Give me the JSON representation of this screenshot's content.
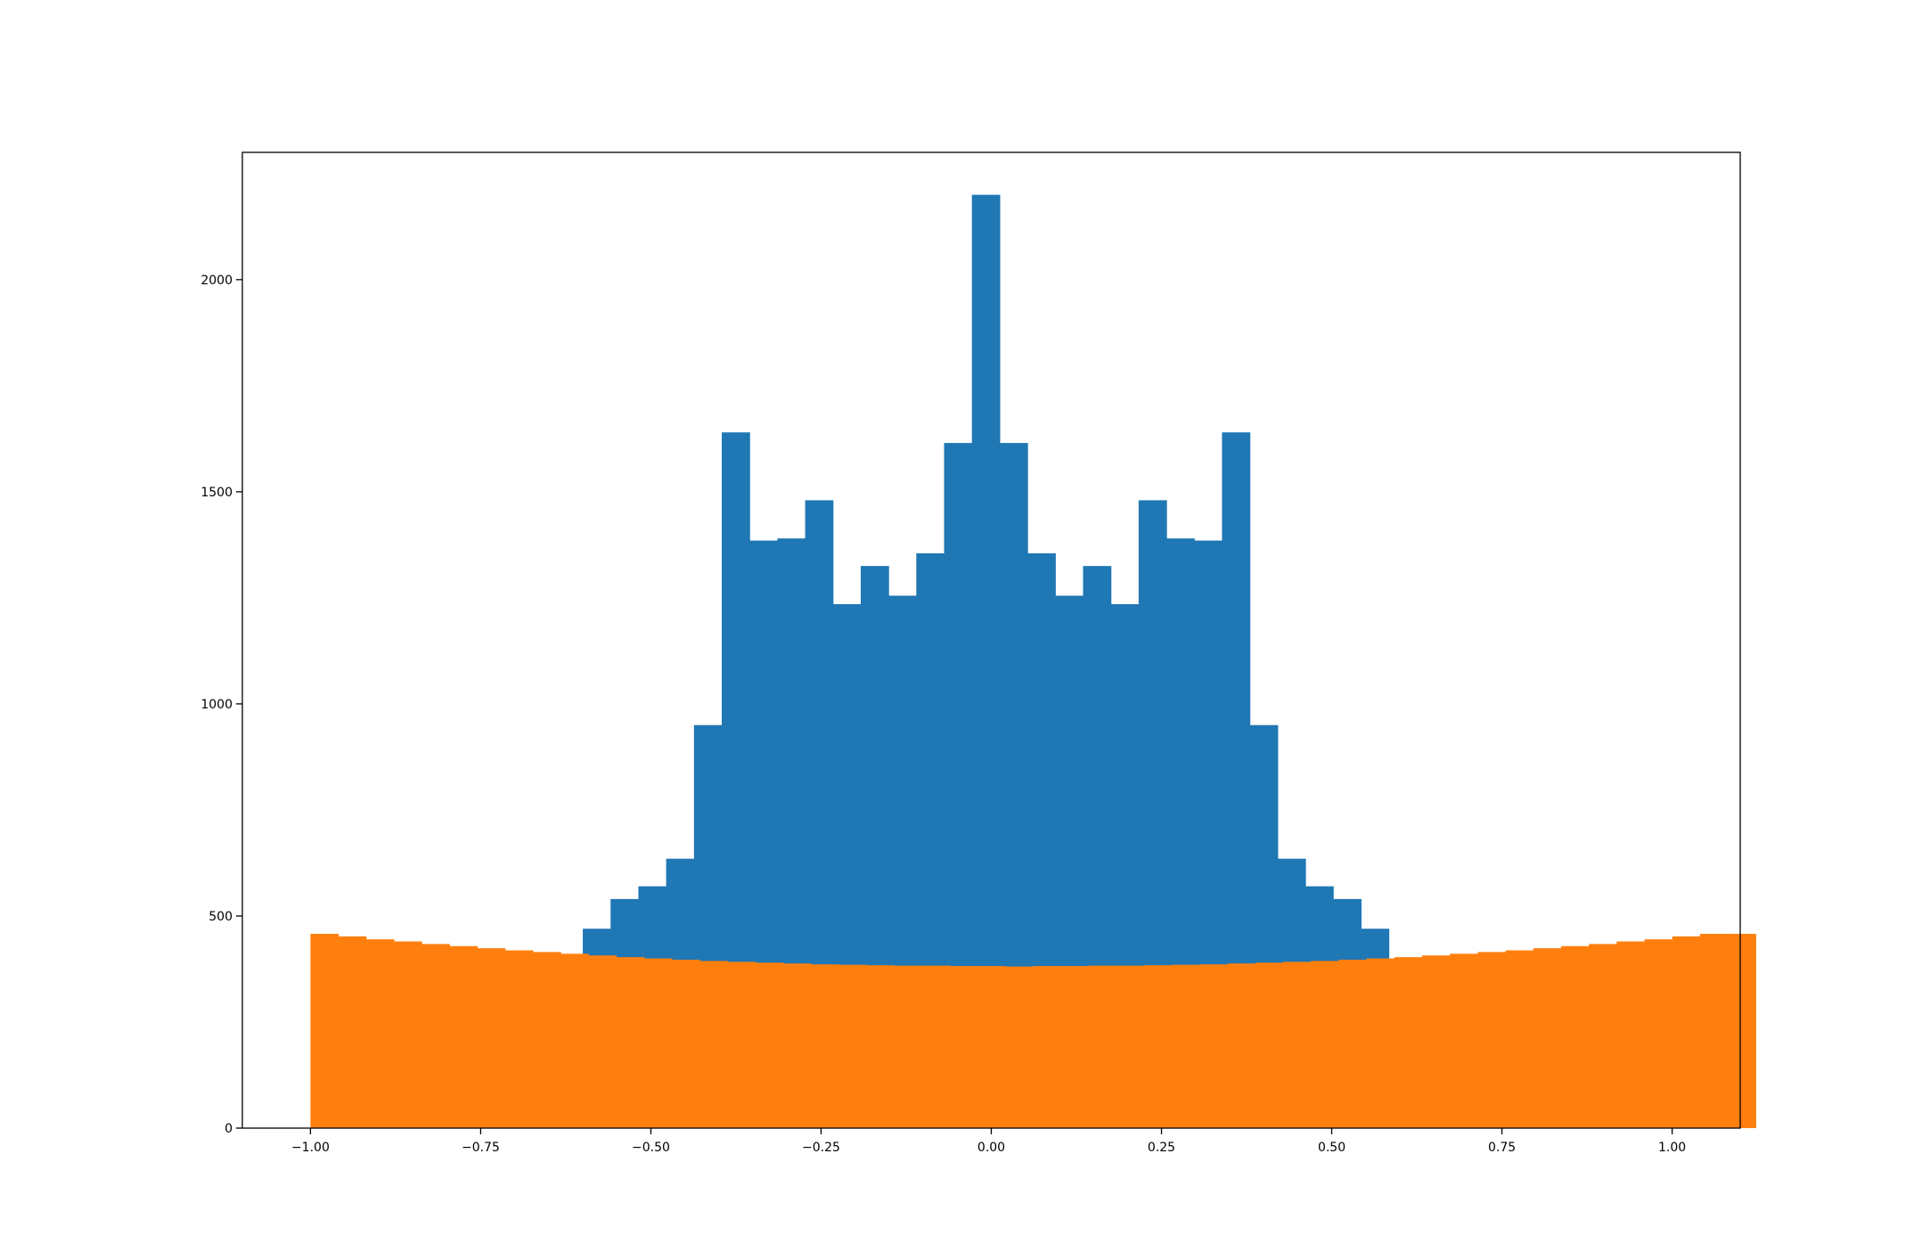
{
  "chart_data": {
    "type": "bar",
    "title": "",
    "xlabel": "",
    "ylabel": "",
    "xlim": [
      -1.1,
      1.1
    ],
    "ylim": [
      0,
      2300
    ],
    "grid": false,
    "legend": "none",
    "x_ticks": [
      -1.0,
      -0.75,
      -0.5,
      -0.25,
      0.0,
      0.25,
      0.5,
      0.75,
      1.0
    ],
    "x_tick_labels": [
      "−1.00",
      "−0.75",
      "−0.50",
      "−0.25",
      "0.00",
      "0.25",
      "0.50",
      "0.75",
      "1.00"
    ],
    "y_ticks": [
      0,
      500,
      1000,
      1500,
      2000
    ],
    "y_tick_labels": [
      "0",
      "500",
      "1000",
      "1500",
      "2000"
    ],
    "series": [
      {
        "color": "#1f77b4",
        "bin_start": -0.6,
        "bin_width": 0.04082,
        "values": [
          470,
          540,
          570,
          635,
          950,
          1640,
          1385,
          1390,
          1480,
          1235,
          1325,
          1255,
          1355,
          1615,
          2200,
          1615,
          1355,
          1255,
          1325,
          1235,
          1480,
          1390,
          1385,
          1640,
          950,
          635,
          570,
          540,
          470
        ]
      },
      {
        "color": "#ff7f0e",
        "bin_start": -1.0,
        "bin_width": 0.04082,
        "values": [
          458,
          452,
          445,
          440,
          434,
          429,
          424,
          419,
          415,
          411,
          407,
          403,
          400,
          397,
          394,
          392,
          390,
          388,
          386,
          385,
          384,
          383,
          383,
          382,
          382,
          381,
          382,
          382,
          383,
          383,
          384,
          385,
          386,
          388,
          390,
          392,
          394,
          397,
          400,
          403,
          407,
          411,
          415,
          419,
          424,
          429,
          434,
          440,
          445,
          452,
          458,
          458
        ]
      }
    ]
  }
}
